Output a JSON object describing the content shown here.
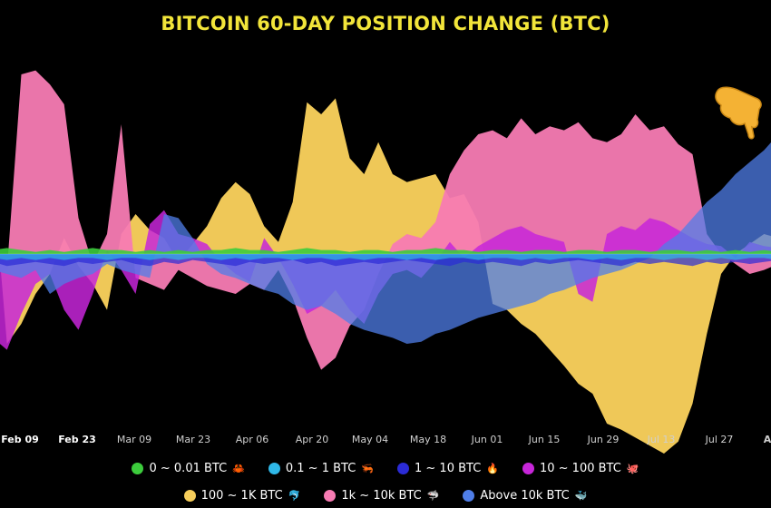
{
  "chart_data": {
    "type": "area",
    "title": "BITCOIN 60-DAY POSITION CHANGE (BTC)",
    "xlabel": "",
    "ylabel": "",
    "x_ticks": [
      "Feb 09",
      "Feb 23",
      "Mar 09",
      "Mar 23",
      "Apr 06",
      "Apr 20",
      "May 04",
      "May 18",
      "Jun 01",
      "Jun 15",
      "Jun 29",
      "Jul 13",
      "Jul 27",
      "A"
    ],
    "x_tick_positions_index": [
      2,
      6,
      10,
      14,
      18,
      22,
      26,
      30,
      34,
      38,
      42,
      46,
      50,
      54
    ],
    "y_range": [
      -100,
      100
    ],
    "grid": false,
    "legend_position": "bottom",
    "series": [
      {
        "name": "0 ~ 0.01 BTC",
        "color": "#3ccc3c",
        "emoji": "🦀",
        "values": [
          2,
          3,
          2,
          1,
          2,
          1,
          2,
          3,
          2,
          2,
          1,
          2,
          1,
          2,
          1,
          2,
          2,
          3,
          2,
          2,
          1,
          2,
          3,
          2,
          2,
          1,
          2,
          2,
          1,
          2,
          2,
          3,
          2,
          2,
          1,
          2,
          2,
          1,
          2,
          2,
          1,
          2,
          2,
          1,
          2,
          2,
          1,
          2,
          2,
          1,
          2,
          1,
          2,
          1,
          2,
          1
        ]
      },
      {
        "name": "0.1 ~ 1 BTC",
        "color": "#2fb8e8",
        "emoji": "🦐",
        "values": [
          -2,
          -3,
          -2,
          -3,
          -2,
          -3,
          -2,
          -2,
          -3,
          -2,
          -2,
          -3,
          -2,
          -3,
          -2,
          -2,
          -3,
          -2,
          -3,
          -2,
          -2,
          -3,
          -2,
          -2,
          -3,
          -2,
          -3,
          -2,
          -2,
          -3,
          -2,
          -3,
          -2,
          -2,
          -3,
          -2,
          -2,
          -3,
          -2,
          -3,
          -2,
          -2,
          -3,
          -2,
          -3,
          -2,
          -2,
          -3,
          -2,
          -2,
          -3,
          -2,
          -3,
          -2,
          -2,
          -3
        ]
      },
      {
        "name": "1 ~ 10 BTC",
        "color": "#2b2bd6",
        "emoji": "🔥",
        "values": [
          -4,
          -6,
          -5,
          -4,
          -5,
          -6,
          -4,
          -5,
          -4,
          -3,
          -5,
          -6,
          -4,
          -5,
          -3,
          -4,
          -5,
          -6,
          -4,
          -5,
          -4,
          -3,
          -5,
          -4,
          -6,
          -5,
          -4,
          -5,
          -4,
          -3,
          -4,
          -5,
          -6,
          -4,
          -5,
          -4,
          -5,
          -6,
          -4,
          -5,
          -4,
          -3,
          -4,
          -5,
          -6,
          -4,
          -5,
          -4,
          -5,
          -6,
          -4,
          -5,
          -4,
          -5,
          -4,
          -3
        ]
      },
      {
        "name": "10 ~ 100 BTC",
        "color": "#c726d9",
        "emoji": "🐙",
        "values": [
          -42,
          -48,
          -30,
          -15,
          -10,
          -28,
          -38,
          -20,
          2,
          -8,
          -20,
          15,
          22,
          10,
          8,
          5,
          -4,
          -10,
          -14,
          8,
          -2,
          -15,
          -30,
          -26,
          -18,
          -28,
          -35,
          -20,
          -10,
          -8,
          -12,
          -4,
          6,
          -2,
          4,
          8,
          12,
          14,
          10,
          8,
          6,
          -20,
          -24,
          10,
          14,
          12,
          18,
          16,
          12,
          8,
          5,
          4,
          -2,
          6,
          4,
          3
        ]
      },
      {
        "name": "100 ~ 1K BTC",
        "color": "#f7ce5b",
        "emoji": "🐬",
        "values": [
          40,
          -45,
          -35,
          -20,
          -10,
          8,
          -6,
          -15,
          -28,
          10,
          20,
          12,
          8,
          -4,
          5,
          14,
          28,
          36,
          30,
          14,
          6,
          26,
          76,
          70,
          78,
          48,
          40,
          56,
          40,
          36,
          38,
          40,
          28,
          30,
          16,
          -25,
          -28,
          -35,
          -40,
          -48,
          -56,
          -65,
          -70,
          -85,
          -88,
          -92,
          -96,
          -100,
          -94,
          -75,
          -40,
          -10,
          0,
          5,
          10,
          8
        ]
      },
      {
        "name": "1k ~ 10k BTC",
        "color": "#f77bb3",
        "emoji": "🦈",
        "values": [
          -10,
          -8,
          90,
          92,
          85,
          75,
          18,
          -5,
          10,
          65,
          -12,
          -15,
          -18,
          -8,
          -12,
          -16,
          -18,
          -20,
          -15,
          -18,
          -8,
          -22,
          -42,
          -58,
          -52,
          -36,
          -28,
          -10,
          5,
          10,
          8,
          16,
          40,
          52,
          60,
          62,
          58,
          68,
          60,
          64,
          62,
          66,
          58,
          56,
          60,
          70,
          62,
          64,
          55,
          50,
          10,
          0,
          -5,
          -10,
          -8,
          -5
        ]
      },
      {
        "name": "Above 10k BTC",
        "color": "#4f7ee8",
        "emoji": "🐳",
        "values": [
          -8,
          -10,
          -12,
          -8,
          -20,
          -15,
          -12,
          -10,
          -5,
          -8,
          -10,
          -12,
          20,
          18,
          8,
          -5,
          -10,
          -12,
          -15,
          -18,
          -20,
          -25,
          -28,
          -26,
          -30,
          -35,
          -38,
          -40,
          -42,
          -45,
          -44,
          -40,
          -38,
          -35,
          -32,
          -30,
          -28,
          -26,
          -24,
          -20,
          -18,
          -15,
          -12,
          -10,
          -8,
          -5,
          -2,
          5,
          10,
          18,
          26,
          32,
          40,
          46,
          52,
          60
        ]
      }
    ]
  },
  "legend": {
    "row1": [
      {
        "label": "0 ~ 0.01 BTC",
        "color": "#3ccc3c",
        "emoji": "🦀"
      },
      {
        "label": "0.1 ~ 1 BTC",
        "color": "#2fb8e8",
        "emoji": "🦐"
      },
      {
        "label": "1 ~ 10 BTC",
        "color": "#2b2bd6",
        "emoji": "🔥"
      },
      {
        "label": "10 ~ 100 BTC",
        "color": "#c726d9",
        "emoji": "🐙"
      }
    ],
    "row2": [
      {
        "label": "100 ~ 1K BTC",
        "color": "#f7ce5b",
        "emoji": "🐬"
      },
      {
        "label": "1k ~ 10k BTC",
        "color": "#f77bb3",
        "emoji": "🦈"
      },
      {
        "label": "Above 10k BTC",
        "color": "#4f7ee8",
        "emoji": "🐳"
      }
    ]
  },
  "icons": {
    "pointer": "pointing-hand-icon"
  }
}
